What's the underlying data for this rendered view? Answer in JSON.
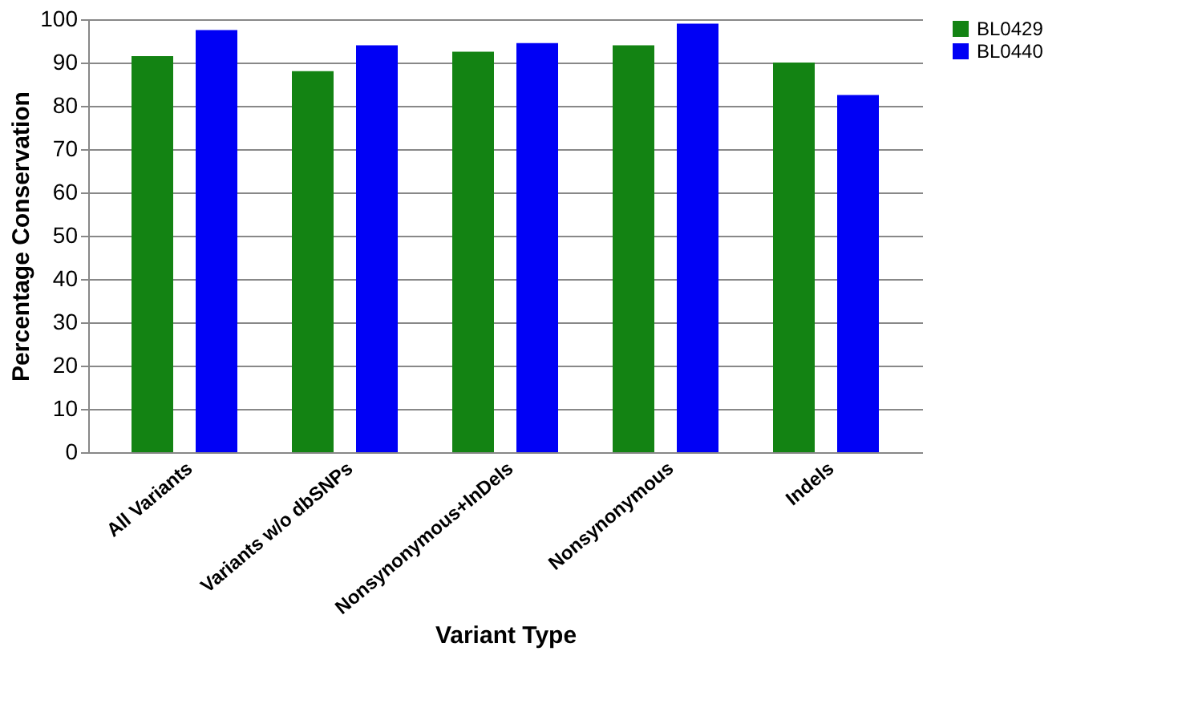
{
  "chart_data": {
    "type": "bar",
    "xlabel": "Variant Type",
    "ylabel": "Percentage Conservation",
    "categories": [
      "All Variants",
      "Variants w/o dbSNPs",
      "Nonsynonymous+InDels",
      "Nonsynonymous",
      "Indels"
    ],
    "series": [
      {
        "name": "BL0429",
        "color": "#138313",
        "values": [
          91.5,
          88,
          92.5,
          94,
          90
        ]
      },
      {
        "name": "BL0440",
        "color": "#0000f5",
        "values": [
          97.5,
          94,
          94.5,
          99,
          82.5
        ]
      }
    ],
    "ylim": [
      0,
      100
    ],
    "yticks": [
      0,
      10,
      20,
      30,
      40,
      50,
      60,
      70,
      80,
      90,
      100
    ],
    "grid": "y",
    "legend": "top right"
  }
}
